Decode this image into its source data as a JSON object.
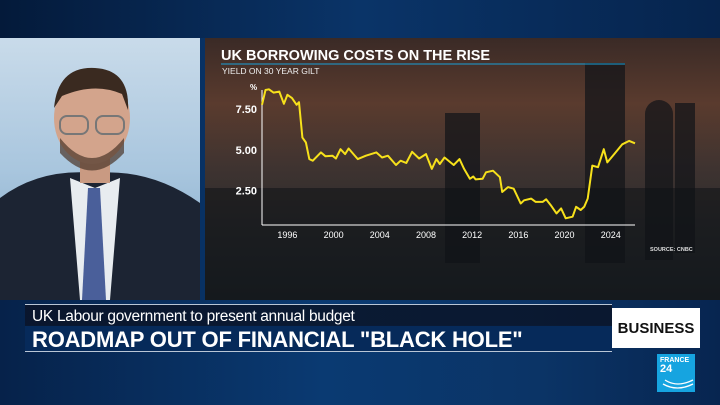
{
  "lower_third": {
    "subtitle": "UK Labour government to present annual budget",
    "headline": "ROADMAP OUT OF FINANCIAL \"BLACK HOLE\""
  },
  "section_badge": "BUSINESS",
  "logo": {
    "line1": "FRANCE",
    "line2": "24",
    "color": "#16a4e0"
  },
  "chart_data": {
    "type": "line",
    "title": "UK BORROWING COSTS ON THE RISE",
    "subtitle": "YIELD ON 30 YEAR GILT",
    "ylabel": "%",
    "source": "SOURCE: CNBC",
    "x_ticks": [
      "1996",
      "2000",
      "2004",
      "2008",
      "2012",
      "2016",
      "2020",
      "2024"
    ],
    "y_ticks": [
      "2.50",
      "5.00",
      "7.50"
    ],
    "xlim": [
      1993.8,
      2026.1
    ],
    "ylim": [
      0.38,
      8.8
    ],
    "grid": false,
    "line_color": "#f7e11b",
    "x": [
      1993.8,
      1994.1,
      1994.4,
      1994.8,
      1995.3,
      1995.7,
      1996,
      1996.4,
      1996.8,
      1997,
      1997.3,
      1997.6,
      1997.9,
      1998.2,
      1998.9,
      1999.3,
      1999.9,
      2000.2,
      2000.6,
      2001,
      2001.3,
      2002.1,
      2002.8,
      2003.7,
      2004.2,
      2004.7,
      2005.4,
      2005.8,
      2006.3,
      2006.8,
      2007.4,
      2008,
      2008.5,
      2008.9,
      2009.2,
      2009.6,
      2010.4,
      2010.9,
      2011.3,
      2011.8,
      2012.1,
      2012.3,
      2012.9,
      2013.2,
      2013.8,
      2014.4,
      2014.6,
      2015.1,
      2015.6,
      2016.2,
      2016.5,
      2017.1,
      2017.5,
      2018.1,
      2018.4,
      2018.8,
      2019.3,
      2019.7,
      2020.1,
      2020.7,
      2021,
      2021.4,
      2021.7,
      2022,
      2022.4,
      2022.9,
      2023.4,
      2023.7,
      2024.3,
      2025,
      2025.6,
      2026.1
    ],
    "values": [
      7.77,
      8.68,
      8.72,
      8.52,
      8.58,
      7.83,
      8.38,
      8.18,
      7.77,
      7.93,
      5.75,
      5.45,
      4.43,
      4.33,
      4.84,
      4.6,
      4.64,
      4.47,
      5.04,
      4.74,
      5.08,
      4.43,
      4.64,
      4.84,
      4.53,
      4.64,
      4.07,
      4.33,
      4.19,
      4.88,
      4.47,
      4.74,
      3.83,
      4.43,
      4.13,
      4.53,
      4.07,
      4.43,
      3.83,
      3.22,
      3.36,
      3.18,
      3.22,
      3.62,
      3.72,
      3.32,
      2.41,
      2.71,
      2.61,
      1.7,
      1.9,
      2.0,
      1.8,
      1.8,
      1.96,
      1.6,
      1.09,
      1.4,
      0.79,
      0.89,
      1.5,
      1.3,
      1.5,
      2.0,
      4.03,
      3.93,
      5.04,
      4.23,
      4.74,
      5.34,
      5.55,
      5.4
    ]
  }
}
